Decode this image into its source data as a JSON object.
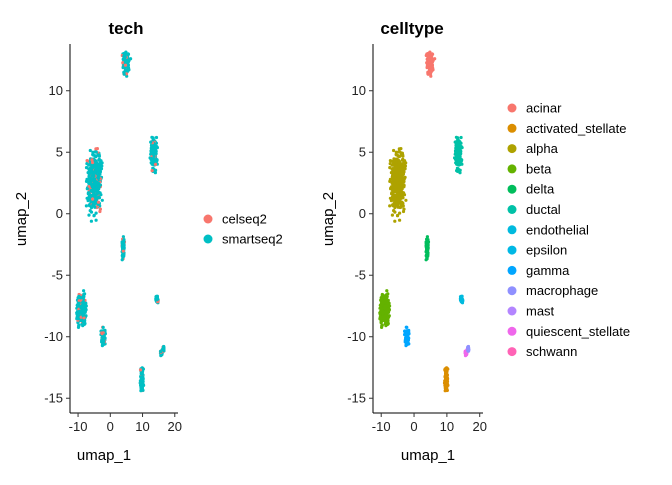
{
  "chart_data": [
    {
      "type": "scatter",
      "title": "tech",
      "xlabel": "umap_1",
      "ylabel": "umap_2",
      "xlim": [
        -12.5,
        21
      ],
      "ylim": [
        -16.2,
        13.8
      ],
      "xticks": [
        -10,
        0,
        10,
        20
      ],
      "yticks": [
        -15,
        -10,
        -5,
        0,
        5,
        10
      ],
      "xtick_labels": [
        "-10",
        "0",
        "10",
        "20"
      ],
      "ytick_labels": [
        "-15",
        "-10",
        "-5",
        "0",
        "5",
        "10"
      ],
      "grid": false,
      "legend_position": "right",
      "legend_title": "",
      "series": [
        {
          "name": "celseq2",
          "color": "#F8766D"
        },
        {
          "name": "smartseq2",
          "color": "#00BFC4"
        }
      ]
    },
    {
      "type": "scatter",
      "title": "celltype",
      "xlabel": "umap_1",
      "ylabel": "umap_2",
      "xlim": [
        -12.5,
        21
      ],
      "ylim": [
        -16.2,
        13.8
      ],
      "xticks": [
        -10,
        0,
        10,
        20
      ],
      "yticks": [
        -15,
        -10,
        -5,
        0,
        5,
        10
      ],
      "xtick_labels": [
        "-10",
        "0",
        "10",
        "20"
      ],
      "ytick_labels": [
        "-15",
        "-10",
        "-5",
        "0",
        "5",
        "10"
      ],
      "grid": false,
      "legend_position": "right",
      "legend_title": "",
      "series": [
        {
          "name": "acinar",
          "color": "#F8766D"
        },
        {
          "name": "activated_stellate",
          "color": "#DB8E00"
        },
        {
          "name": "alpha",
          "color": "#AEA200"
        },
        {
          "name": "beta",
          "color": "#64B200"
        },
        {
          "name": "delta",
          "color": "#00BD5C"
        },
        {
          "name": "ductal",
          "color": "#00C1A7"
        },
        {
          "name": "endothelial",
          "color": "#00BADE"
        },
        {
          "name": "epsilon",
          "color": "#00B8E5"
        },
        {
          "name": "gamma",
          "color": "#00A6FF"
        },
        {
          "name": "macrophage",
          "color": "#8F90FF"
        },
        {
          "name": "mast",
          "color": "#B385FF"
        },
        {
          "name": "quiescent_stellate",
          "color": "#EF67EB"
        },
        {
          "name": "schwann",
          "color": "#FF63B6"
        }
      ],
      "clusters": [
        {
          "celltype": "acinar",
          "center": [
            5,
            12.2
          ],
          "extent": [
            1.6,
            1.2
          ]
        },
        {
          "celltype": "ductal",
          "center": [
            13.5,
            5
          ],
          "extent": [
            1.4,
            2
          ]
        },
        {
          "celltype": "alpha",
          "center": [
            -5,
            2.5
          ],
          "extent": [
            3,
            3.4
          ]
        },
        {
          "celltype": "delta",
          "center": [
            4,
            -2.8
          ],
          "extent": [
            0.5,
            1.1
          ]
        },
        {
          "celltype": "beta",
          "center": [
            -9,
            -7.8
          ],
          "extent": [
            2,
            1.8
          ]
        },
        {
          "celltype": "gamma",
          "center": [
            -2.2,
            -10
          ],
          "extent": [
            0.9,
            1
          ]
        },
        {
          "celltype": "activated_stellate",
          "center": [
            9.8,
            -13.5
          ],
          "extent": [
            0.7,
            1.3
          ]
        },
        {
          "celltype": "quiescent_stellate",
          "center": [
            15.8,
            -11.3
          ],
          "extent": [
            0.4,
            0.3
          ]
        },
        {
          "celltype": "endothelial",
          "center": [
            14.5,
            -7
          ],
          "extent": [
            0.5,
            0.4
          ]
        },
        {
          "celltype": "macrophage",
          "center": [
            16.5,
            -11
          ],
          "extent": [
            0.2,
            0.3
          ]
        }
      ]
    }
  ]
}
